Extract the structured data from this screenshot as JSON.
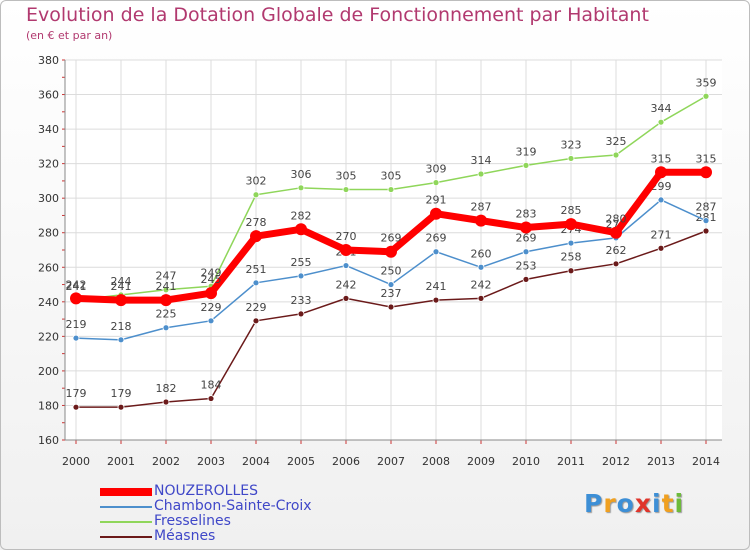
{
  "chart_data": {
    "type": "line",
    "title": "Evolution de la Dotation Globale de Fonctionnement par Habitant",
    "subtitle": "(en € et par an)",
    "categories": [
      "2000",
      "2001",
      "2002",
      "2003",
      "2004",
      "2005",
      "2006",
      "2007",
      "2008",
      "2009",
      "2010",
      "2011",
      "2012",
      "2013",
      "2014"
    ],
    "ylim": [
      160,
      380
    ],
    "yticks": [
      160,
      180,
      200,
      220,
      240,
      260,
      280,
      300,
      320,
      340,
      360,
      380
    ],
    "grid": true,
    "legend_position": "bottom-left",
    "series": [
      {
        "name": "Méasnes",
        "color": "#6b1a1a",
        "values": [
          179,
          179,
          182,
          184,
          229,
          233,
          242,
          237,
          241,
          242,
          253,
          258,
          262,
          271,
          281
        ]
      },
      {
        "name": "Chambon-Sainte-Croix",
        "color": "#4d8fcc",
        "values": [
          219,
          218,
          225,
          229,
          251,
          255,
          261,
          250,
          269,
          260,
          269,
          274,
          277,
          299,
          287
        ]
      },
      {
        "name": "Fresselines",
        "color": "#8fd65a",
        "values": [
          241,
          244,
          247,
          249,
          302,
          306,
          305,
          305,
          309,
          314,
          319,
          323,
          325,
          344,
          359
        ]
      },
      {
        "name": "NOUZEROLLES",
        "color": "#ff0000",
        "values": [
          242,
          241,
          241,
          245,
          278,
          282,
          270,
          269,
          291,
          287,
          283,
          285,
          280,
          315,
          315
        ]
      }
    ],
    "legend_order": [
      "NOUZEROLLES",
      "Chambon-Sainte-Croix",
      "Fresselines",
      "Méasnes"
    ]
  },
  "logo": {
    "letters": [
      {
        "ch": "P",
        "color": "#3d8fd6"
      },
      {
        "ch": "r",
        "color": "#f0a020"
      },
      {
        "ch": "o",
        "color": "#3d8fd6"
      },
      {
        "ch": "x",
        "color": "#e0352b"
      },
      {
        "ch": "i",
        "color": "#3d8fd6"
      },
      {
        "ch": "t",
        "color": "#f0a020"
      },
      {
        "ch": "i",
        "color": "#6dbb3a"
      }
    ]
  }
}
